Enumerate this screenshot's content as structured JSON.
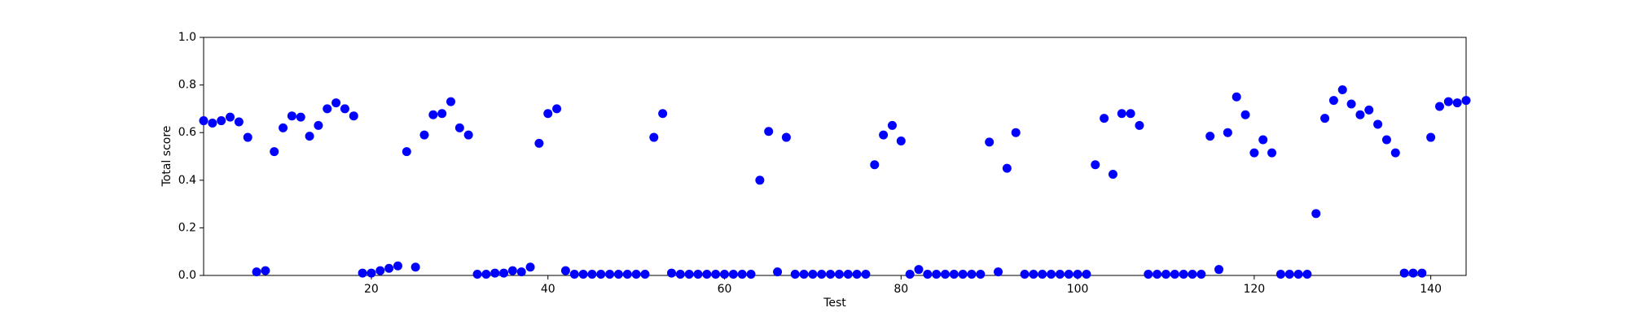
{
  "chart_data": {
    "type": "scatter",
    "xlabel": "Test",
    "ylabel": "Total score",
    "color": "#0000ff",
    "grid": false,
    "xlim": [
      1,
      144
    ],
    "ylim": [
      0,
      1
    ],
    "xticks": [
      20,
      40,
      60,
      80,
      100,
      120,
      140
    ],
    "yticks": [
      {
        "value": 0,
        "label": "0.0"
      },
      0.2,
      0.4,
      0.6,
      0.8,
      {
        "value": 1,
        "label": "1.0"
      }
    ],
    "x": [
      1,
      2,
      3,
      4,
      5,
      6,
      7,
      8,
      9,
      10,
      11,
      12,
      13,
      14,
      15,
      16,
      17,
      18,
      19,
      20,
      21,
      22,
      23,
      24,
      25,
      26,
      27,
      28,
      29,
      30,
      31,
      32,
      33,
      34,
      35,
      36,
      37,
      38,
      39,
      40,
      41,
      42,
      43,
      44,
      45,
      46,
      47,
      48,
      49,
      50,
      51,
      52,
      53,
      54,
      55,
      56,
      57,
      58,
      59,
      60,
      61,
      62,
      63,
      64,
      65,
      66,
      67,
      68,
      69,
      70,
      71,
      72,
      73,
      74,
      75,
      76,
      77,
      78,
      79,
      80,
      81,
      82,
      83,
      84,
      85,
      86,
      87,
      88,
      89,
      90,
      91,
      92,
      93,
      94,
      95,
      96,
      97,
      98,
      99,
      100,
      101,
      102,
      103,
      104,
      105,
      106,
      107,
      108,
      109,
      110,
      111,
      112,
      113,
      114,
      115,
      116,
      117,
      118,
      119,
      120,
      121,
      122,
      123,
      124,
      125,
      126,
      127,
      128,
      129,
      130,
      131,
      132,
      133,
      134,
      135,
      136,
      137,
      138,
      139,
      140,
      141,
      142,
      143,
      144
    ],
    "values": [
      0.65,
      0.64,
      0.65,
      0.665,
      0.645,
      0.58,
      0.015,
      0.02,
      0.52,
      0.62,
      0.67,
      0.665,
      0.585,
      0.63,
      0.7,
      0.725,
      0.7,
      0.67,
      0.01,
      0.01,
      0.02,
      0.03,
      0.04,
      0.52,
      0.035,
      0.59,
      0.675,
      0.68,
      0.73,
      0.62,
      0.59,
      0.005,
      0.005,
      0.01,
      0.01,
      0.02,
      0.015,
      0.035,
      0.555,
      0.68,
      0.7,
      0.02,
      0.005,
      0.005,
      0.005,
      0.005,
      0.005,
      0.005,
      0.005,
      0.005,
      0.005,
      0.58,
      0.68,
      0.01,
      0.005,
      0.005,
      0.005,
      0.005,
      0.005,
      0.005,
      0.005,
      0.005,
      0.005,
      0.4,
      0.605,
      0.015,
      0.58,
      0.005,
      0.005,
      0.005,
      0.005,
      0.005,
      0.005,
      0.005,
      0.005,
      0.005,
      0.465,
      0.59,
      0.63,
      0.565,
      0.005,
      0.025,
      0.005,
      0.005,
      0.005,
      0.005,
      0.005,
      0.005,
      0.005,
      0.56,
      0.015,
      0.45,
      0.6,
      0.005,
      0.005,
      0.005,
      0.005,
      0.005,
      0.005,
      0.005,
      0.005,
      0.465,
      0.66,
      0.425,
      0.68,
      0.68,
      0.63,
      0.005,
      0.005,
      0.005,
      0.005,
      0.005,
      0.005,
      0.005,
      0.585,
      0.025,
      0.6,
      0.75,
      0.675,
      0.515,
      0.57,
      0.515,
      0.005,
      0.005,
      0.005,
      0.005,
      0.26,
      0.66,
      0.735,
      0.78,
      0.72,
      0.675,
      0.695,
      0.635,
      0.57,
      0.515,
      0.01,
      0.01,
      0.01,
      0.58,
      0.71,
      0.73,
      0.725,
      0.735
    ]
  }
}
